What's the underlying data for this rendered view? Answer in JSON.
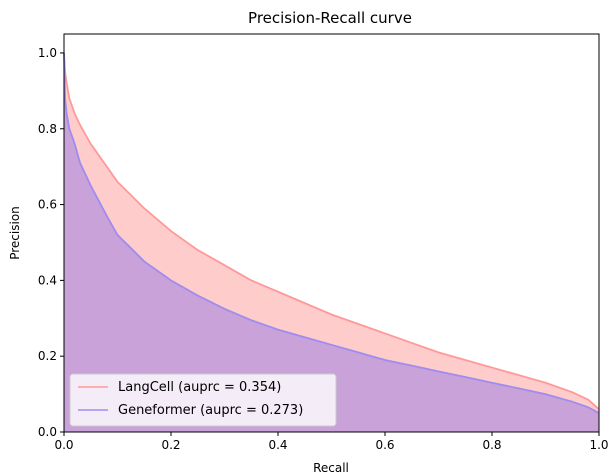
{
  "chart_data": {
    "type": "area",
    "title": "Precision-Recall curve",
    "xlabel": "Recall",
    "ylabel": "Precision",
    "xlim": [
      0.0,
      1.0
    ],
    "ylim": [
      0.0,
      1.05
    ],
    "xticks": [
      "0.0",
      "0.2",
      "0.4",
      "0.6",
      "0.8",
      "1.0"
    ],
    "yticks": [
      "0.0",
      "0.2",
      "0.4",
      "0.6",
      "0.8",
      "1.0"
    ],
    "grid": false,
    "legend_position": "lower-left",
    "series": [
      {
        "name": "LangCell (auprc = 0.354)",
        "line_color": "#ff9999",
        "fill_color": "#ffcccc",
        "x": [
          0.0,
          0.002,
          0.005,
          0.01,
          0.02,
          0.03,
          0.05,
          0.08,
          0.1,
          0.15,
          0.2,
          0.25,
          0.3,
          0.35,
          0.4,
          0.45,
          0.5,
          0.55,
          0.6,
          0.65,
          0.7,
          0.75,
          0.8,
          0.85,
          0.9,
          0.95,
          0.98,
          1.0
        ],
        "y": [
          1.0,
          0.95,
          0.92,
          0.88,
          0.84,
          0.81,
          0.76,
          0.7,
          0.66,
          0.59,
          0.53,
          0.48,
          0.44,
          0.4,
          0.37,
          0.34,
          0.31,
          0.285,
          0.26,
          0.235,
          0.21,
          0.19,
          0.17,
          0.15,
          0.13,
          0.105,
          0.085,
          0.06
        ]
      },
      {
        "name": "Geneformer (auprc = 0.273)",
        "line_color": "#9f8cf0",
        "fill_color": "#c8a2d8",
        "x": [
          0.0,
          0.002,
          0.005,
          0.01,
          0.02,
          0.03,
          0.05,
          0.08,
          0.1,
          0.15,
          0.2,
          0.25,
          0.3,
          0.35,
          0.4,
          0.45,
          0.5,
          0.55,
          0.6,
          0.65,
          0.7,
          0.75,
          0.8,
          0.85,
          0.9,
          0.95,
          0.98,
          1.0
        ],
        "y": [
          1.0,
          0.88,
          0.84,
          0.8,
          0.76,
          0.71,
          0.65,
          0.57,
          0.52,
          0.45,
          0.4,
          0.36,
          0.325,
          0.295,
          0.27,
          0.25,
          0.23,
          0.21,
          0.19,
          0.175,
          0.16,
          0.145,
          0.13,
          0.115,
          0.1,
          0.08,
          0.065,
          0.05
        ]
      }
    ]
  }
}
